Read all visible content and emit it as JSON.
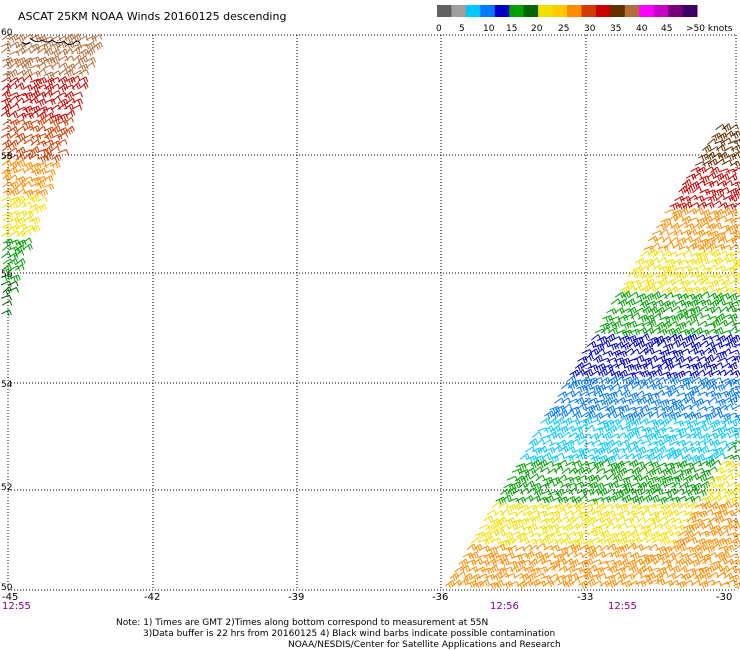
{
  "title": "ASCAT 25KM NOAA Winds 20160125 descending",
  "legend": {
    "colors": [
      "#606060",
      "#a0a0a0",
      "#00c8ff",
      "#0078ff",
      "#0000c8",
      "#00a000",
      "#006400",
      "#f0e000",
      "#ffc800",
      "#ff8c00",
      "#d23c00",
      "#c80000",
      "#643200",
      "#b46e3c",
      "#ff00ff",
      "#c800c8",
      "#780078",
      "#3c0064"
    ],
    "labels": [
      "0",
      "5",
      "10",
      "15",
      "20",
      "25",
      "30",
      "35",
      "40",
      "45",
      ">50 knots"
    ]
  },
  "axes": {
    "lat_labels": [
      "60",
      "58",
      "56",
      "54",
      "52",
      "50"
    ],
    "lon_labels": [
      "-45",
      "-42",
      "-39",
      "-36",
      "-33",
      "-30"
    ]
  },
  "time_labels": [
    "12:55",
    "12:56",
    "12:55"
  ],
  "notes": [
    "Note: 1) Times are GMT 2)Times along bottom correspond to measurement at 55N",
    "3)Data buffer is 22 hrs from 20160125 4) Black wind barbs indicate possible contamination",
    "NOAA/NESDIS/Center for Satellite Applications and Research"
  ],
  "swaths": [
    {
      "name": "west-swath",
      "bands": [
        "#b46e3c",
        "#c80000",
        "#d23c00",
        "#ff8c00",
        "#f0e000",
        "#00a000",
        "#006400"
      ]
    },
    {
      "name": "east-swath",
      "bands": [
        "#643200",
        "#c80000",
        "#ff8c00",
        "#f0e000",
        "#00a000",
        "#0000c8",
        "#0078ff",
        "#00c8ff",
        "#00a000",
        "#f0e000",
        "#ff8c00"
      ]
    }
  ]
}
